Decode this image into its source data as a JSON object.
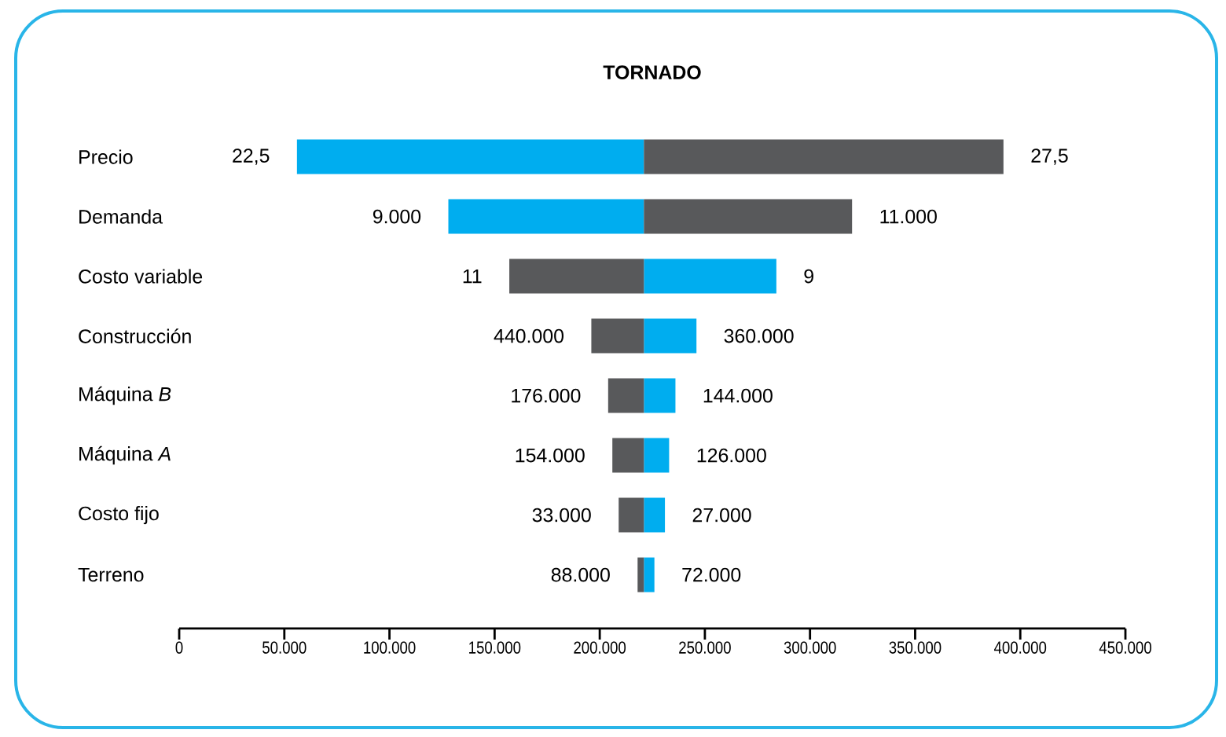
{
  "chart_data": {
    "type": "bar",
    "orientation": "horizontal",
    "title": "TORNADO",
    "categories": [
      "Precio",
      "Demanda",
      "Costo variable",
      "Construcción",
      "Máquina *B*",
      "Máquina *A*",
      "Costo fijo",
      "Terreno"
    ],
    "xlim": [
      0,
      450000
    ],
    "xticks": [
      0,
      {
        "value": 50000,
        "label": "50.000"
      },
      {
        "value": 100000,
        "label": "100.000"
      },
      {
        "value": 150000,
        "label": "150.000"
      },
      {
        "value": 200000,
        "label": "200.000"
      },
      {
        "value": 250000,
        "label": "250.000"
      },
      {
        "value": 300000,
        "label": "300.000"
      },
      {
        "value": 350000,
        "label": "350.000"
      },
      {
        "value": 400000,
        "label": "400.000"
      },
      {
        "value": 450000,
        "label": "450.000"
      }
    ],
    "series": [
      {
        "color": "#00adef",
        "base": [
          56000,
          128000,
          221000,
          221000,
          221000,
          221000,
          221000,
          221000
        ],
        "values": [
          165000,
          93000,
          63000,
          25000,
          15000,
          12000,
          10000,
          5000
        ]
      },
      {
        "color": "#58595b",
        "base": [
          221000,
          221000,
          157000,
          196000,
          204000,
          206000,
          209000,
          218000
        ],
        "values": [
          171000,
          99000,
          64000,
          25000,
          17000,
          15000,
          12000,
          3000
        ]
      }
    ],
    "annotations": [
      {
        "text": "22,5",
        "x": 56000,
        "y": "Precio"
      },
      {
        "text": "27,5",
        "x": 392000,
        "y": "Precio"
      },
      {
        "text": "9.000",
        "x": 128000,
        "y": "Demanda"
      },
      {
        "text": "11.000",
        "x": 320000,
        "y": "Demanda"
      },
      {
        "text": "11",
        "x": 157000,
        "y": "Costo variable"
      },
      {
        "text": "9",
        "x": 284000,
        "y": "Costo variable"
      },
      {
        "text": "440.000",
        "x": 196000,
        "y": "Construcción"
      },
      {
        "text": "360.000",
        "x": 246000,
        "y": "Construcción"
      },
      {
        "text": "176.000",
        "x": 204000,
        "y": "Máquina *B*"
      },
      {
        "text": "144.000",
        "x": 236000,
        "y": "Máquina *B*"
      },
      {
        "text": "154.000",
        "x": 206000,
        "y": "Máquina *A*"
      },
      {
        "text": "126.000",
        "x": 233000,
        "y": "Máquina *A*"
      },
      {
        "text": "33.000",
        "x": 209000,
        "y": "Costo fijo"
      },
      {
        "text": "27.000",
        "x": 231000,
        "y": "Costo fijo"
      },
      {
        "text": "88.000",
        "x": 218000,
        "y": "Terreno"
      },
      {
        "text": "72.000",
        "x": 226000,
        "y": "Terreno"
      }
    ],
    "grid": false
  }
}
